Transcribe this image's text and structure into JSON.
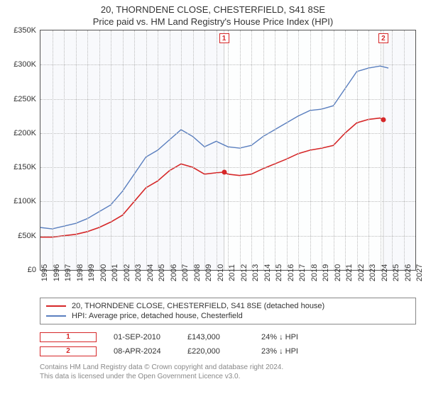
{
  "title": {
    "line1": "20, THORNDENE CLOSE, CHESTERFIELD, S41 8SE",
    "line2": "Price paid vs. HM Land Registry's House Price Index (HPI)",
    "fontsize": 13
  },
  "chart": {
    "type": "line",
    "background_color": "#f8f9fc",
    "grid_color": "#bbbbbb",
    "border_color": "#555555",
    "ylim": [
      0,
      350000
    ],
    "ytick_step": 50000,
    "yticks": [
      "£0",
      "£50K",
      "£100K",
      "£150K",
      "£200K",
      "£250K",
      "£300K",
      "£350K"
    ],
    "xlim": [
      1995,
      2027
    ],
    "xticks": [
      1995,
      1996,
      1997,
      1998,
      1999,
      2000,
      2001,
      2002,
      2003,
      2004,
      2005,
      2006,
      2007,
      2008,
      2009,
      2010,
      2011,
      2012,
      2013,
      2014,
      2015,
      2016,
      2017,
      2018,
      2019,
      2020,
      2021,
      2022,
      2023,
      2024,
      2025,
      2026,
      2027
    ],
    "shade_from_year": 2010.7,
    "shade_to_year": 2024.3,
    "series": {
      "price_paid": {
        "color": "#d62728",
        "width": 1.6,
        "points": [
          [
            1995,
            48000
          ],
          [
            1996,
            48000
          ],
          [
            1997,
            50000
          ],
          [
            1998,
            52000
          ],
          [
            1999,
            56000
          ],
          [
            2000,
            62000
          ],
          [
            2001,
            70000
          ],
          [
            2002,
            80000
          ],
          [
            2003,
            100000
          ],
          [
            2004,
            120000
          ],
          [
            2005,
            130000
          ],
          [
            2006,
            145000
          ],
          [
            2007,
            155000
          ],
          [
            2008,
            150000
          ],
          [
            2009,
            140000
          ],
          [
            2010,
            142000
          ],
          [
            2010.67,
            143000
          ],
          [
            2011,
            140000
          ],
          [
            2012,
            138000
          ],
          [
            2013,
            140000
          ],
          [
            2014,
            148000
          ],
          [
            2015,
            155000
          ],
          [
            2016,
            162000
          ],
          [
            2017,
            170000
          ],
          [
            2018,
            175000
          ],
          [
            2019,
            178000
          ],
          [
            2020,
            182000
          ],
          [
            2021,
            200000
          ],
          [
            2022,
            215000
          ],
          [
            2023,
            220000
          ],
          [
            2024,
            222000
          ],
          [
            2024.27,
            220000
          ]
        ]
      },
      "hpi": {
        "color": "#5a7fbf",
        "width": 1.4,
        "points": [
          [
            1995,
            62000
          ],
          [
            1996,
            60000
          ],
          [
            1997,
            64000
          ],
          [
            1998,
            68000
          ],
          [
            1999,
            75000
          ],
          [
            2000,
            85000
          ],
          [
            2001,
            95000
          ],
          [
            2002,
            115000
          ],
          [
            2003,
            140000
          ],
          [
            2004,
            165000
          ],
          [
            2005,
            175000
          ],
          [
            2006,
            190000
          ],
          [
            2007,
            205000
          ],
          [
            2008,
            195000
          ],
          [
            2009,
            180000
          ],
          [
            2010,
            188000
          ],
          [
            2011,
            180000
          ],
          [
            2012,
            178000
          ],
          [
            2013,
            182000
          ],
          [
            2014,
            195000
          ],
          [
            2015,
            205000
          ],
          [
            2016,
            215000
          ],
          [
            2017,
            225000
          ],
          [
            2018,
            233000
          ],
          [
            2019,
            235000
          ],
          [
            2020,
            240000
          ],
          [
            2021,
            265000
          ],
          [
            2022,
            290000
          ],
          [
            2023,
            295000
          ],
          [
            2024,
            298000
          ],
          [
            2024.7,
            295000
          ]
        ]
      }
    },
    "sale_points": [
      {
        "n": "1",
        "year": 2010.67,
        "price": 143000,
        "color": "#d62728"
      },
      {
        "n": "2",
        "year": 2024.27,
        "price": 220000,
        "color": "#d62728"
      }
    ],
    "marker_box_color": "#d62728"
  },
  "legend": {
    "items": [
      {
        "color": "#d62728",
        "label": "20, THORNDENE CLOSE, CHESTERFIELD, S41 8SE (detached house)"
      },
      {
        "color": "#5a7fbf",
        "label": "HPI: Average price, detached house, Chesterfield"
      }
    ]
  },
  "sales": [
    {
      "n": "1",
      "date": "01-SEP-2010",
      "price": "£143,000",
      "delta": "24% ↓ HPI",
      "color": "#d62728"
    },
    {
      "n": "2",
      "date": "08-APR-2024",
      "price": "£220,000",
      "delta": "23% ↓ HPI",
      "color": "#d62728"
    }
  ],
  "footer": {
    "line1": "Contains HM Land Registry data © Crown copyright and database right 2024.",
    "line2": "This data is licensed under the Open Government Licence v3.0."
  }
}
